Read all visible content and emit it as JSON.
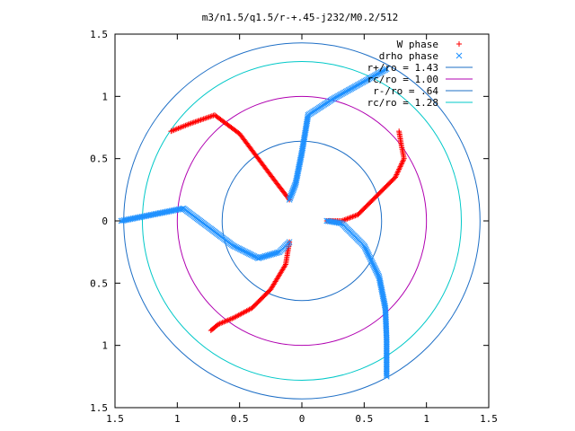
{
  "chart_data": {
    "type": "scatter",
    "title": "m3/n1.5/q1.5/r-+.45-j232/M0.2/512",
    "xlabel": "",
    "ylabel": "",
    "xlim": [
      -1.5,
      1.5
    ],
    "ylim": [
      -1.5,
      1.5
    ],
    "x_ticks": [
      -1.5,
      -1,
      -0.5,
      0,
      0.5,
      1,
      1.5
    ],
    "y_ticks": [
      -1.5,
      -1,
      -0.5,
      0,
      0.5,
      1,
      1.5
    ],
    "x_tick_labels": [
      "1.5",
      "1",
      "0.5",
      "0",
      "0.5",
      "1",
      "1.5"
    ],
    "y_tick_labels": [
      "1.5",
      "1",
      "0.5",
      "0",
      "0.5",
      "1",
      "1.5"
    ],
    "grid": false,
    "legend_position": "top-right",
    "series": [
      {
        "name": "W phase",
        "marker": "+",
        "color": "#ff0000",
        "arms": [
          [
            [
              0.2,
              0.0
            ],
            [
              0.32,
              0.0
            ],
            [
              0.45,
              0.05
            ],
            [
              0.6,
              0.2
            ],
            [
              0.75,
              0.35
            ],
            [
              0.82,
              0.5
            ],
            [
              0.8,
              0.6
            ],
            [
              0.78,
              0.72
            ]
          ],
          [
            [
              -0.1,
              -0.17
            ],
            [
              -0.13,
              -0.35
            ],
            [
              -0.25,
              -0.55
            ],
            [
              -0.4,
              -0.7
            ],
            [
              -0.55,
              -0.78
            ],
            [
              -0.67,
              -0.83
            ],
            [
              -0.73,
              -0.88
            ]
          ],
          [
            [
              -0.1,
              0.17
            ],
            [
              -0.2,
              0.3
            ],
            [
              -0.35,
              0.5
            ],
            [
              -0.5,
              0.7
            ],
            [
              -0.7,
              0.85
            ],
            [
              -0.9,
              0.78
            ],
            [
              -1.05,
              0.72
            ]
          ]
        ]
      },
      {
        "name": "drho phase",
        "marker": "x",
        "color": "#1e90ff",
        "arms": [
          [
            [
              0.2,
              0.0
            ],
            [
              0.32,
              -0.02
            ],
            [
              0.5,
              -0.2
            ],
            [
              0.62,
              -0.45
            ],
            [
              0.67,
              -0.7
            ],
            [
              0.68,
              -0.95
            ],
            [
              0.68,
              -1.25
            ]
          ],
          [
            [
              -0.1,
              -0.17
            ],
            [
              -0.18,
              -0.25
            ],
            [
              -0.35,
              -0.3
            ],
            [
              -0.55,
              -0.2
            ],
            [
              -0.75,
              -0.05
            ],
            [
              -0.95,
              0.1
            ],
            [
              -1.45,
              0.0
            ]
          ],
          [
            [
              -0.1,
              0.17
            ],
            [
              -0.05,
              0.3
            ],
            [
              0.0,
              0.55
            ],
            [
              0.05,
              0.85
            ],
            [
              0.25,
              0.98
            ],
            [
              0.5,
              1.12
            ],
            [
              0.68,
              1.22
            ]
          ]
        ]
      },
      {
        "name": "r+/ro = 1.43",
        "type": "circle",
        "radius": 1.43,
        "color": "#1e6fc6"
      },
      {
        "name": "rc/ro = 1.00",
        "type": "circle",
        "radius": 1.0,
        "color": "#b000b0"
      },
      {
        "name": "r-/ro = .64",
        "type": "circle",
        "radius": 0.64,
        "color": "#1e6fc6"
      },
      {
        "name": "rc/ro = 1.28",
        "type": "circle",
        "radius": 1.28,
        "color": "#00c8c8"
      }
    ]
  }
}
